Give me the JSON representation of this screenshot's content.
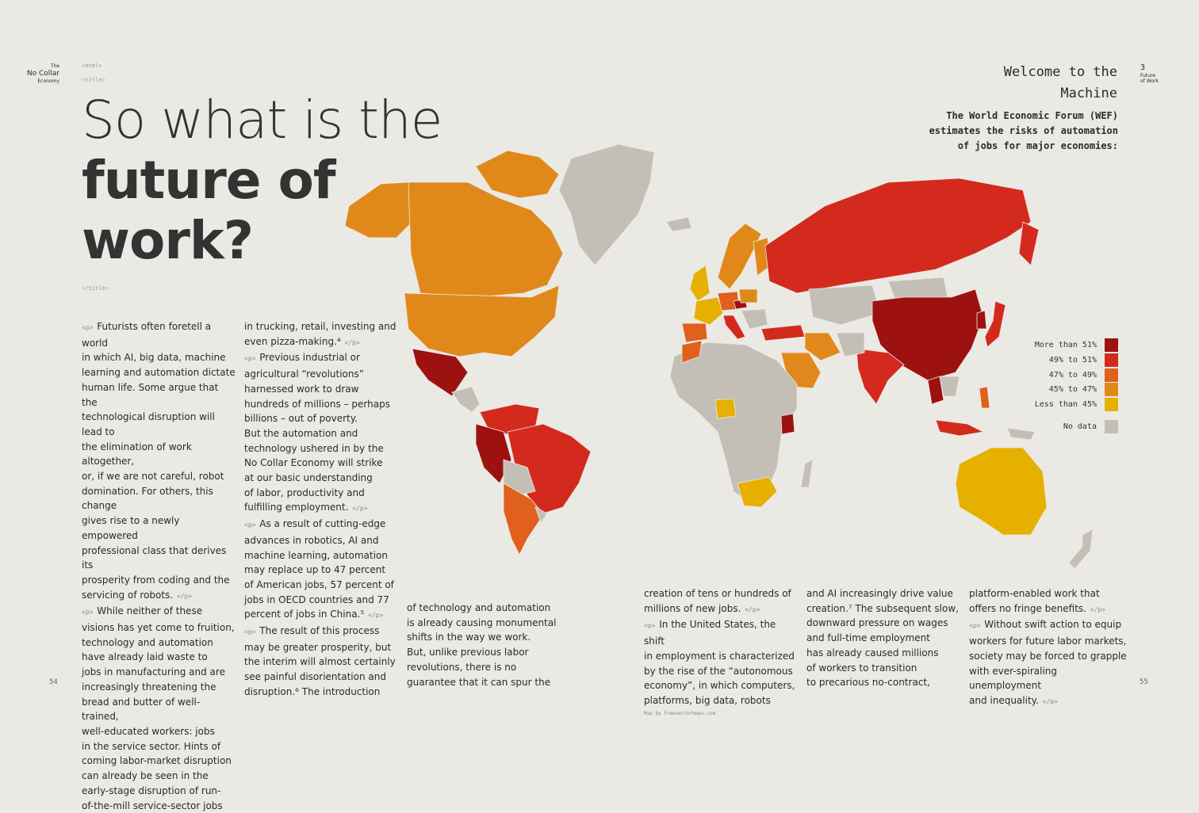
{
  "header_left": {
    "line1": "The",
    "line2": "No Collar",
    "line3": "Economy"
  },
  "header_right": {
    "page_num": "3",
    "line1": "Future",
    "line2": "of Work"
  },
  "tags": {
    "html": "<html>",
    "title_open": "<title>",
    "title_close": "</title>",
    "p_open": "<p>",
    "p_close": "</p>"
  },
  "title": {
    "line1": "So what is the",
    "line2": "future of",
    "line3": "work?"
  },
  "sidebar": {
    "heading_line1": "Welcome to the",
    "heading_line2": "Machine",
    "desc_line1": "The World Economic Forum (WEF)",
    "desc_line2": "estimates the risks of automation",
    "desc_line3": "of jobs for major economies:"
  },
  "legend": [
    {
      "label": "More than 51%",
      "color": "#9e1111"
    },
    {
      "label": "49% to 51%",
      "color": "#d42a1e"
    },
    {
      "label": "47% to 49%",
      "color": "#e0601c"
    },
    {
      "label": "45% to 47%",
      "color": "#e0891a"
    },
    {
      "label": "Less than 45%",
      "color": "#e6b000"
    },
    {
      "label": "No data",
      "color": "#c4bfb6"
    }
  ],
  "map_credit": "Map by Freevectormaps.com",
  "page_left": "54",
  "page_right": "55",
  "columns": {
    "c1": [
      "Futurists often foretell a world",
      "in which AI, big data, machine",
      "learning and automation dictate",
      "human life. Some argue that the",
      "technological disruption will lead to",
      "the elimination of work altogether,",
      "or, if we are not careful, robot",
      "domination. For others, this change",
      "gives rise to a newly empowered",
      "professional class that derives its",
      "prosperity from coding and the",
      "servicing of robots.",
      "While neither of these",
      "visions has yet come to fruition,",
      "technology and automation",
      "have already laid waste to",
      "jobs in manufacturing and are",
      "increasingly threatening the",
      "bread and butter of well-trained,",
      "well-educated workers: jobs",
      "in the service sector. Hints of",
      "coming labor-market disruption",
      "can already be seen in the",
      "early-stage disruption of run-",
      "of-the-mill service-sector jobs"
    ],
    "c2": [
      "in trucking, retail, investing and",
      "even pizza-making.⁴",
      "Previous industrial or",
      "agricultural “revolutions”",
      "harnessed work to draw",
      "hundreds of millions – perhaps",
      "billions – out of poverty.",
      "But the automation and",
      "technology ushered in by the",
      "No Collar Economy will strike",
      "at our basic understanding",
      "of labor, productivity and",
      "fulfilling employment.",
      "As a result of cutting-edge",
      "advances in robotics, AI and",
      "machine learning, automation",
      "may replace up to 47 percent",
      "of American jobs, 57 percent of",
      "jobs in OECD countries and 77",
      "percent of jobs in China.⁵",
      "The result of this process",
      "may be greater prosperity, but",
      "the interim will almost certainly",
      "see painful disorientation and",
      "disruption.⁶ The introduction"
    ],
    "c3": [
      "of technology and automation",
      "is already causing monumental",
      "shifts in the way we work.",
      "But, unlike previous labor",
      "revolutions, there is no",
      "guarantee that it can spur the"
    ],
    "c4": [
      "creation of tens or hundreds of",
      "millions of new jobs.",
      "In the United States, the shift",
      "in employment is characterized",
      "by the rise of the “autonomous",
      "economy”, in which computers,",
      "platforms, big data, robots"
    ],
    "c5": [
      "and AI increasingly drive value",
      "creation.⁷ The subsequent slow,",
      "downward pressure on wages",
      "and full-time employment",
      "has already caused millions",
      "of workers to transition",
      "to precarious no-contract,"
    ],
    "c6": [
      "platform-enabled work that",
      "offers no fringe benefits.",
      "Without swift action to equip",
      "workers for future labor markets,",
      "society may be forced to grapple",
      "with ever-spiraling unemployment",
      "and inequality."
    ]
  }
}
